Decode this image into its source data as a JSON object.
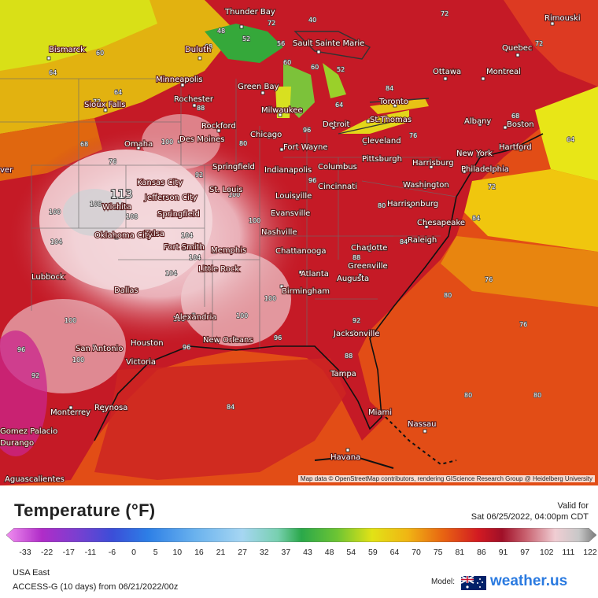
{
  "legend": {
    "title": "Temperature (°F)",
    "tick_labels": [
      "-33",
      "-22",
      "-17",
      "-11",
      "-6",
      "0",
      "5",
      "10",
      "16",
      "21",
      "27",
      "32",
      "37",
      "43",
      "48",
      "54",
      "59",
      "64",
      "70",
      "75",
      "81",
      "86",
      "91",
      "97",
      "102",
      "111",
      "122"
    ]
  },
  "valid": {
    "label": "Valid for",
    "time": "Sat 06/25/2022, 04:00pm CDT"
  },
  "region": "USA East",
  "model_run": "ACCESS-G (10 days) from 06/21/2022/00z",
  "model_label": "Model:",
  "brand": "weather.us",
  "attribution": "Map data © OpenStreetMap contributors, rendering GIScience Research Group @ Heidelberg University",
  "map": {
    "highlight_value": "113",
    "cities": [
      "Thunder Bay",
      "Sault Sainte Marie",
      "Rimouski",
      "Bismarck",
      "Duluth",
      "Quebec",
      "Ottawa",
      "Montreal",
      "Minneapolis",
      "Green Bay",
      "Rochester",
      "Toronto",
      "Sioux Falls",
      "Milwaukee",
      "Albany",
      "Boston",
      "Rockford",
      "Detroit",
      "St.Thomas",
      "Des Moines",
      "Chicago",
      "Cleveland",
      "Omaha",
      "Fort Wayne",
      "New York",
      "Hartford",
      "Springfield",
      "Harrisburg",
      "Columbus",
      "Pittsburgh",
      "Philadelphia",
      "Indianapolis",
      "Kansas City",
      "Cincinnati",
      "Washington",
      "St. Louis",
      "Jefferson City",
      "Louisville",
      "Harrisonburg",
      "Wichita",
      "Evansville",
      "Springfield",
      "Chesapeake",
      "Tulsa",
      "Nashville",
      "Oklahoma City",
      "Raleigh",
      "Fort Smith",
      "Memphis",
      "Chattanooga",
      "Charlotte",
      "Greenville",
      "Little Rock",
      "Lubbock",
      "Atlanta",
      "Augusta",
      "Birmingham",
      "Dallas",
      "Alexandria",
      "San Antonio",
      "Houston",
      "New Orleans",
      "Jacksonville",
      "Victoria",
      "Tampa",
      "Monterrey",
      "Reynosa",
      "Miami",
      "Nassau",
      "Gomez Palacio",
      "Havana",
      "Durango",
      "Aguascalientes",
      "ver"
    ],
    "contour_labels": [
      "72",
      "40",
      "48",
      "52",
      "56",
      "72",
      "60",
      "68",
      "64",
      "52",
      "60",
      "60",
      "72",
      "64",
      "68",
      "72",
      "88",
      "80",
      "84",
      "64",
      "76",
      "96",
      "76",
      "100",
      "92",
      "104",
      "108",
      "100",
      "108",
      "104",
      "100",
      "104",
      "100",
      "108",
      "96",
      "100",
      "100",
      "100",
      "96",
      "96",
      "92",
      "84",
      "88",
      "88",
      "96",
      "80",
      "72",
      "84",
      "76",
      "80",
      "76",
      "64",
      "80",
      "80",
      "84",
      "92",
      "72",
      "68",
      "100",
      "104"
    ]
  },
  "colors": {
    "land_hot": "#d6192e",
    "land_very_hot": "#f4d0d4",
    "ocean": "#e64a14",
    "cool_north": "#e8e013",
    "green": "#3ea83a"
  }
}
